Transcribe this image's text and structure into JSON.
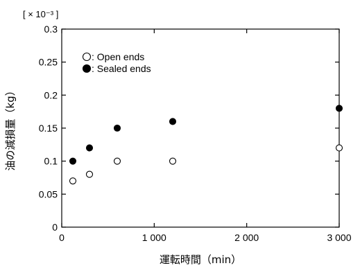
{
  "chart_data": {
    "type": "scatter",
    "xlabel": "運転時間（min）",
    "ylabel": "油の減損量（kg）",
    "y_multiplier_label": "[ × 10⁻³ ]",
    "xlim": [
      0,
      3000
    ],
    "ylim": [
      0,
      0.3
    ],
    "x_ticks": [
      0,
      1000,
      2000,
      3000
    ],
    "x_tick_labels": [
      "0",
      "1 000",
      "2 000",
      "3 000"
    ],
    "y_ticks": [
      0,
      0.05,
      0.1,
      0.15,
      0.2,
      0.25,
      0.3
    ],
    "y_tick_labels": [
      "0",
      "0.05",
      "0.1",
      "0.15",
      "0.2",
      "0.25",
      "0.3"
    ],
    "grid": false,
    "legend": "top-left",
    "series": [
      {
        "name": ": Open ends",
        "marker": "open-circle",
        "color": "#000000",
        "x": [
          120,
          300,
          600,
          1200,
          3000
        ],
        "y": [
          0.07,
          0.08,
          0.1,
          0.1,
          0.12
        ]
      },
      {
        "name": ": Sealed ends",
        "marker": "filled-circle",
        "color": "#000000",
        "x": [
          120,
          300,
          600,
          1200,
          3000
        ],
        "y": [
          0.1,
          0.12,
          0.15,
          0.16,
          0.18
        ]
      }
    ]
  }
}
